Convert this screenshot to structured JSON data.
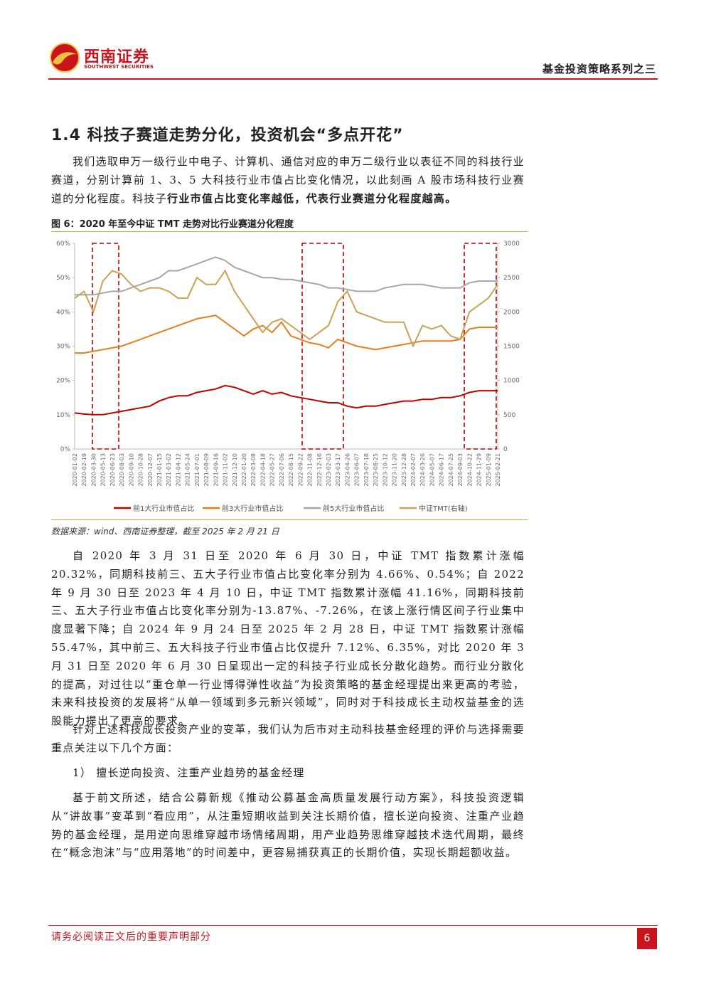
{
  "header": {
    "logo_cn": "西南证券",
    "logo_en": "SOUTHWEST SECURITIES",
    "series_title": "基金投资策略系列之三"
  },
  "section_title": "1.4 科技子赛道走势分化，投资机会“多点开花”",
  "intro": {
    "text": "我们选取申万一级行业中电子、计算机、通信对应的申万二级行业以表征不同的科技行业赛道，分别计算前 1、3、5 大科技行业市值占比变化情况，以此刻画 A 股市场科技行业赛道的分化程度。科技子",
    "bold": "行业市值占比变化率越低，代表行业赛道分化程度越高。"
  },
  "chart_data": {
    "type": "line",
    "title": "图 6：2020 年至今中证 TMT 走势对比行业赛道分化程度",
    "categories": [
      "2020-01-02",
      "2020-02-19",
      "2020-03-30",
      "2020-05-13",
      "2020-06-23",
      "2020-08-03",
      "2020-09-10",
      "2020-10-28",
      "2020-12-07",
      "2021-01-15",
      "2021-03-02",
      "2021-04-12",
      "2021-05-24",
      "2021-07-01",
      "2021-08-09",
      "2021-09-16",
      "2021-11-02",
      "2021-12-10",
      "2022-01-20",
      "2022-03-08",
      "2022-04-18",
      "2022-05-27",
      "2022-07-06",
      "2022-08-15",
      "2022-09-22",
      "2022-11-08",
      "2022-12-16",
      "2023-02-03",
      "2023-03-17",
      "2023-04-26",
      "2023-06-07",
      "2023-07-18",
      "2023-08-25",
      "2023-10-12",
      "2023-11-20",
      "2023-12-28",
      "2024-02-07",
      "2024-03-26",
      "2024-05-07",
      "2024-06-17",
      "2024-07-25",
      "2024-09-03",
      "2024-10-22",
      "2024-11-29",
      "2025-01-09",
      "2025-02-21"
    ],
    "series": [
      {
        "name": "前1大行业市值占比",
        "color": "#c00000",
        "values": [
          10.5,
          10.2,
          10,
          10,
          10.5,
          11,
          11.5,
          12,
          12.5,
          14,
          15,
          15.5,
          15.5,
          16.5,
          17,
          17.5,
          18.5,
          18,
          17,
          16,
          17,
          16,
          16.5,
          15.5,
          15,
          14.5,
          14,
          13.5,
          13.5,
          12.5,
          12,
          12.5,
          12.5,
          13,
          13.5,
          14,
          14,
          14.5,
          14.5,
          15,
          15,
          15.5,
          16.5,
          17,
          17,
          17
        ]
      },
      {
        "name": "前3大行业市值占比",
        "color": "#e87d1e",
        "values": [
          28,
          28,
          28.5,
          29,
          29.5,
          30,
          31,
          32,
          33,
          34,
          35,
          36,
          37,
          38,
          38.5,
          39,
          37,
          35,
          33,
          35,
          36,
          34,
          37,
          33,
          32,
          31,
          30.5,
          29.5,
          32,
          31,
          30,
          29.5,
          29,
          29.5,
          30,
          30.5,
          31,
          31.5,
          31.5,
          31.5,
          31.5,
          32,
          35,
          35.5,
          35.5,
          35.5
        ]
      },
      {
        "name": "前5大行业市值占比",
        "color": "#a6a6a6",
        "values": [
          45,
          45,
          45,
          45.5,
          46,
          46,
          47,
          48,
          49,
          50,
          52,
          52,
          53,
          54,
          55,
          56,
          55,
          53,
          52,
          51,
          50,
          50,
          49.5,
          49.5,
          49,
          48.5,
          48,
          47,
          47,
          46.5,
          46,
          46,
          46,
          47,
          47.5,
          48,
          48,
          48,
          47.5,
          47,
          47,
          47,
          48.5,
          49,
          49,
          49
        ]
      },
      {
        "name": "中证TMT(右轴)",
        "color": "#c9a252",
        "axis": "y2",
        "values": [
          2200,
          2300,
          2000,
          2450,
          2600,
          2550,
          2400,
          2300,
          2350,
          2350,
          2300,
          2200,
          2200,
          2500,
          2400,
          2400,
          2600,
          2300,
          2100,
          1900,
          1700,
          1850,
          1900,
          1800,
          1700,
          1600,
          1700,
          1800,
          2150,
          2300,
          2000,
          1950,
          1900,
          1850,
          1850,
          1850,
          1500,
          1800,
          1750,
          1800,
          1650,
          1600,
          2000,
          2100,
          2200,
          2400
        ]
      }
    ],
    "ylim": [
      0,
      60
    ],
    "yticks": [
      {
        "value": 0,
        "label": "0%"
      },
      {
        "value": 10,
        "label": "10%"
      },
      {
        "value": 20,
        "label": "20%"
      },
      {
        "value": 30,
        "label": "30%"
      },
      {
        "value": 40,
        "label": "40%"
      },
      {
        "value": 50,
        "label": "50%"
      },
      {
        "value": 60,
        "label": "60%"
      }
    ],
    "y2lim": [
      0,
      3000
    ],
    "y2ticks": [
      0,
      500,
      1000,
      1500,
      2000,
      2500,
      3000
    ]
  },
  "source": "数据来源：wind、西南证券整理，截至 2025 年 2 月 21 日",
  "paragraphs": [
    "自 2020 年 3 月 31 日至 2020 年 6 月 30 日，中证 TMT 指数累计涨幅 20.32%，同期科技前三、五大子行业市值占比变化率分别为 4.66%、0.54%；自 2022 年 9 月 30 日至 2023 年 4 月 10 日，中证 TMT 指数累计涨幅 41.16%，同期科技前三、五大子行业市值占比变化率分别为-13.87%、-7.26%，在该上涨行情区间子行业集中度显著下降；自 2024 年 9 月 24 日至 2025 年 2 月 28 日，中证 TMT 指数累计涨幅 55.47%，其中前三、五大科技子行业市值占比仅提升 7.12%、6.35%，对比 2020 年 3 月 31 日至 2020 年 6 月 30 日呈现出一定的科技子行业成长分散化趋势。而行业分散化的提高，对过往以“重仓单一行业博得弹性收益”为投资策略的基金经理提出来更高的考验，未来科技投资的发展将“从单一领域到多元新兴领域”，同时对于科技成长主动权益基金的选股能力提出了更高的要求。",
    "针对上述科技成长投资产业的变革，我们认为后市对主动科技基金经理的评价与选择需要重点关注以下几个方面：",
    "1） 擅长逆向投资、注重产业趋势的基金经理",
    "基于前文所述，结合公募新规《推动公募基金高质量发展行动方案》，科技投资逻辑从“讲故事”变革到“看应用”，从注重短期收益到关注长期价值，擅长逆向投资、注重产业趋势的基金经理，是用逆向思维穿越市场情绪周期，用产业趋势思维穿越技术迭代周期，最终在“概念泡沫”与“应用落地”的时间差中，更容易捕获真正的长期价值，实现长期超额收益。"
  ],
  "footer": {
    "notice": "请务必阅读正文后的重要声明部分",
    "page": "6"
  }
}
